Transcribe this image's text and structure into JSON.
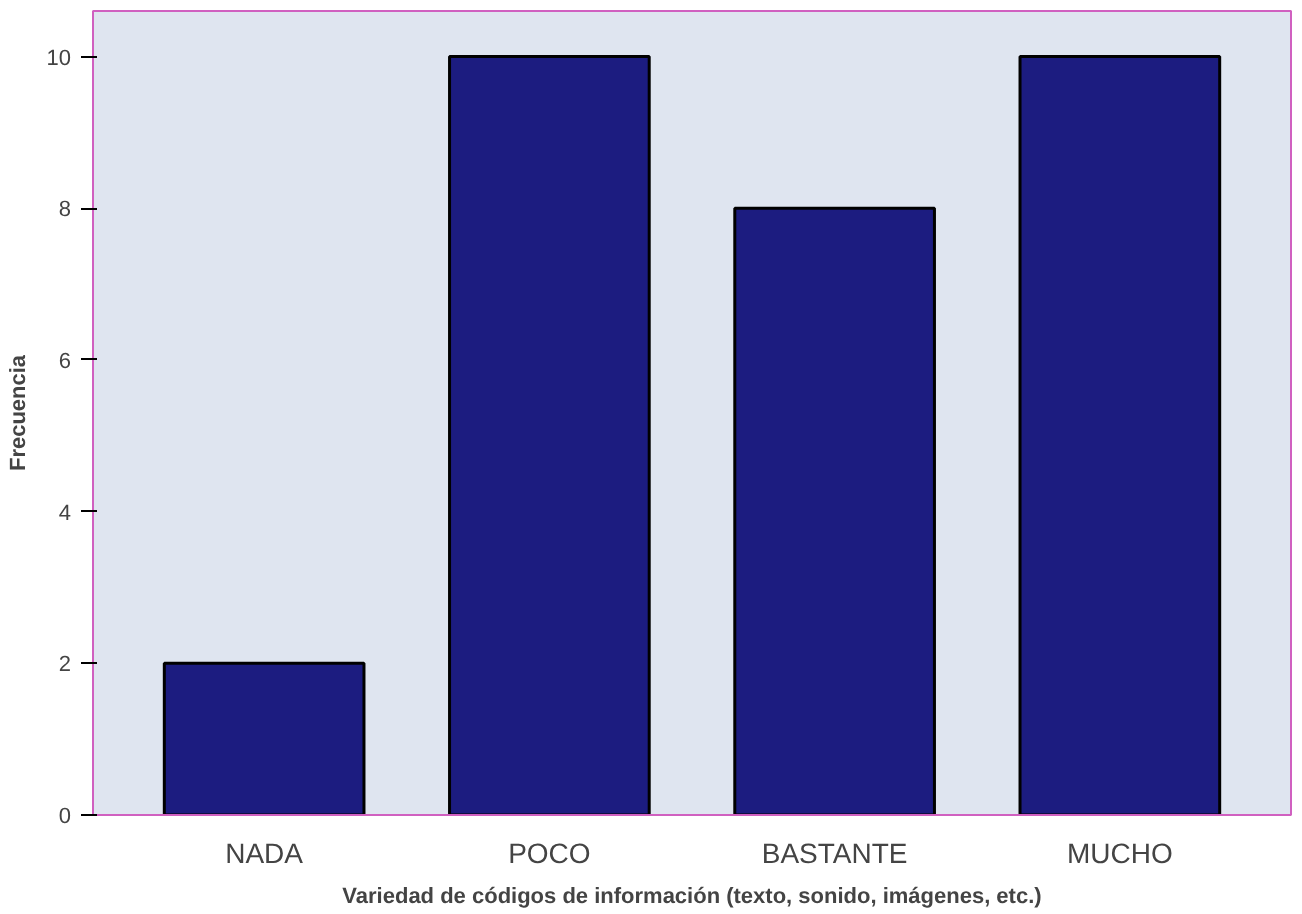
{
  "chart_data": {
    "type": "bar",
    "xlabel": "Variedad de códigos de información (texto, sonido, imágenes, etc.)",
    "ylabel": "Frecuencia",
    "categories": [
      "NADA",
      "POCO",
      "BASTANTE",
      "MUCHO"
    ],
    "values": [
      2,
      10,
      8,
      10
    ],
    "color": "#1c1c80",
    "ylim": [
      0,
      10.6
    ],
    "yticks": [
      0,
      2,
      4,
      6,
      8,
      10
    ],
    "grid": false
  }
}
